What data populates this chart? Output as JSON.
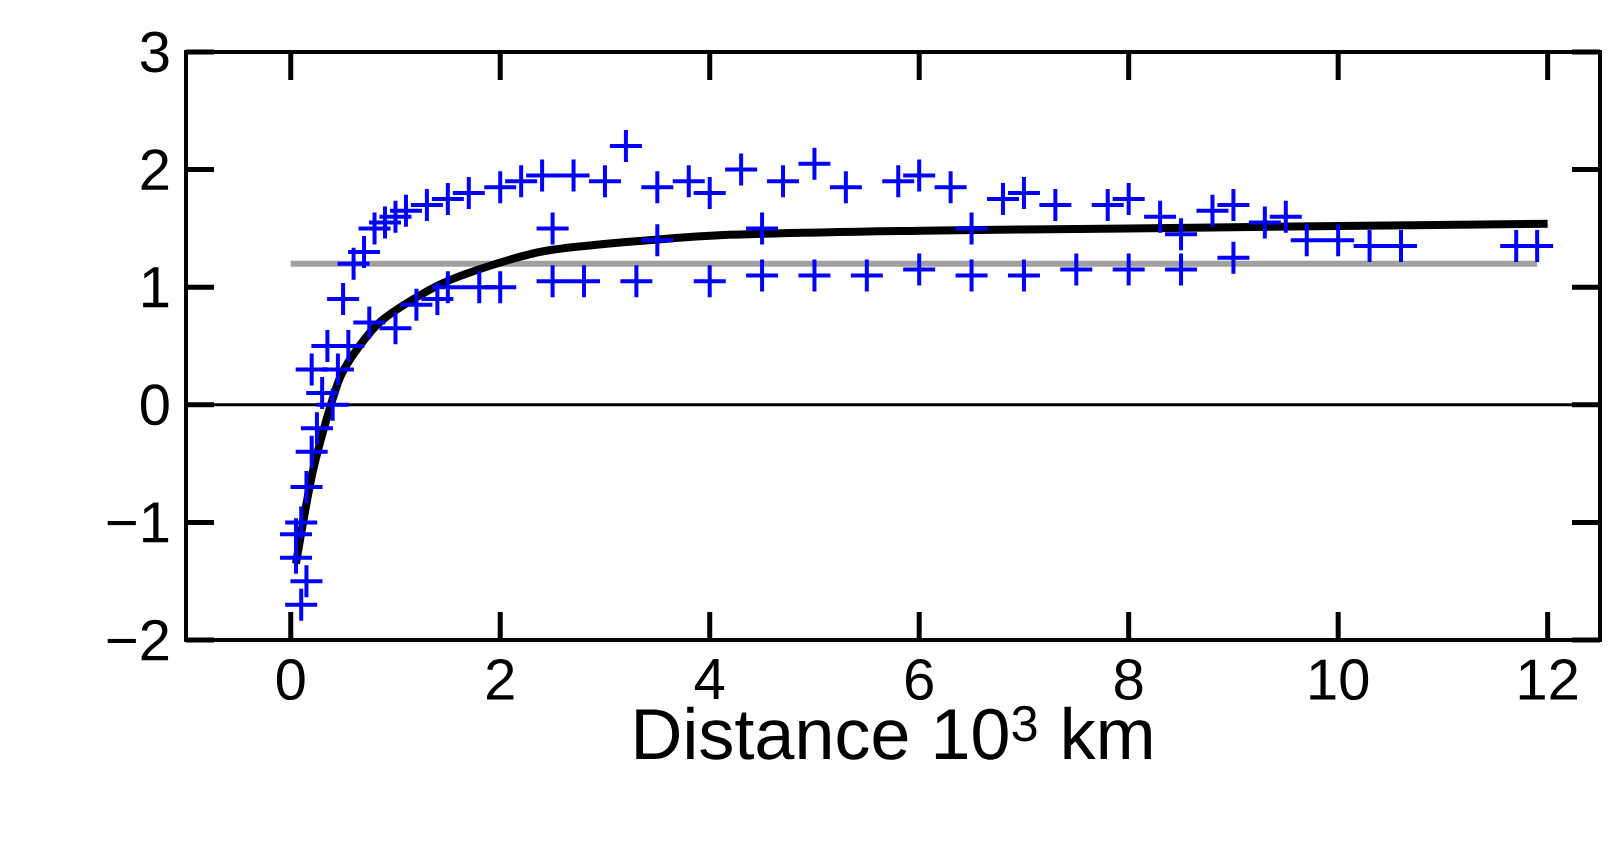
{
  "chart_data": {
    "type": "scatter",
    "xlabel": "Distance 10$^{3}$ km",
    "xlim": [
      -1,
      12.5
    ],
    "ylim": [
      -2,
      3
    ],
    "xticks": [
      0,
      2,
      4,
      6,
      8,
      10,
      12
    ],
    "yticks": [
      {
        "value": -2,
        "label": "−2"
      },
      {
        "value": -1,
        "label": "−1"
      },
      0,
      1,
      2,
      3
    ],
    "grid": false,
    "ref_lines": [
      {
        "axis": "y",
        "value": 0,
        "color": "#000000"
      }
    ],
    "series": [
      {
        "color": "#0000ff",
        "marker": "cross",
        "x": [
          0.1,
          0.05,
          0.1,
          0.15,
          0.2,
          0.05,
          0.15,
          0.25,
          0.3,
          0.2,
          0.35,
          0.4,
          0.5,
          0.45,
          0.6,
          0.55,
          0.7,
          0.8,
          0.75,
          0.9,
          1.0,
          1.0,
          1.1,
          1.2,
          1.3,
          1.4,
          1.5,
          1.5,
          1.7,
          1.8,
          2.0,
          2.0,
          2.2,
          2.4,
          2.5,
          2.7,
          2.8,
          3.0,
          3.2,
          3.3,
          3.5,
          3.8,
          4.0,
          4.0,
          4.3,
          4.5,
          4.7,
          5.0,
          5.0,
          5.3,
          5.5,
          5.8,
          6.0,
          6.0,
          6.3,
          6.5,
          6.8,
          7.0,
          7.0,
          7.3,
          7.5,
          7.8,
          8.0,
          8.0,
          8.3,
          8.5,
          8.8,
          9.0,
          9.0,
          9.3,
          9.5,
          9.7,
          10.0,
          10.3,
          10.6,
          11.7,
          11.9,
          2.5,
          4.5,
          6.5,
          8.5,
          3.5
        ],
        "values": [
          -1.7,
          -1.3,
          -1.0,
          -0.7,
          -0.4,
          -1.1,
          -1.5,
          -0.2,
          0.1,
          0.3,
          0.5,
          0.0,
          0.9,
          0.3,
          1.2,
          0.5,
          1.3,
          1.5,
          0.7,
          1.55,
          1.6,
          0.65,
          1.65,
          0.85,
          1.7,
          0.9,
          1.75,
          1.0,
          1.8,
          1.0,
          1.85,
          1.0,
          1.9,
          1.95,
          1.05,
          1.95,
          1.05,
          1.9,
          2.2,
          1.05,
          1.85,
          1.9,
          1.05,
          1.8,
          2.0,
          1.1,
          1.9,
          2.05,
          1.1,
          1.85,
          1.1,
          1.9,
          1.95,
          1.15,
          1.85,
          1.1,
          1.75,
          1.8,
          1.1,
          1.7,
          1.15,
          1.7,
          1.75,
          1.15,
          1.6,
          1.15,
          1.65,
          1.7,
          1.25,
          1.55,
          1.6,
          1.4,
          1.4,
          1.35,
          1.35,
          1.35,
          1.35,
          1.5,
          1.5,
          1.5,
          1.45,
          1.4
        ]
      },
      {
        "type": "line",
        "color": "#a0a0a0",
        "x": [
          0,
          11.9
        ],
        "values": [
          1.2,
          1.2
        ]
      },
      {
        "type": "line",
        "color": "#000000",
        "x": [
          0.05,
          0.22,
          0.48,
          0.86,
          1.49,
          2.44,
          4.05,
          6.0,
          8.0,
          10.0,
          12.0
        ],
        "values": [
          -1.35,
          -0.53,
          0.25,
          0.71,
          1.05,
          1.31,
          1.44,
          1.48,
          1.5,
          1.52,
          1.54
        ]
      }
    ]
  }
}
